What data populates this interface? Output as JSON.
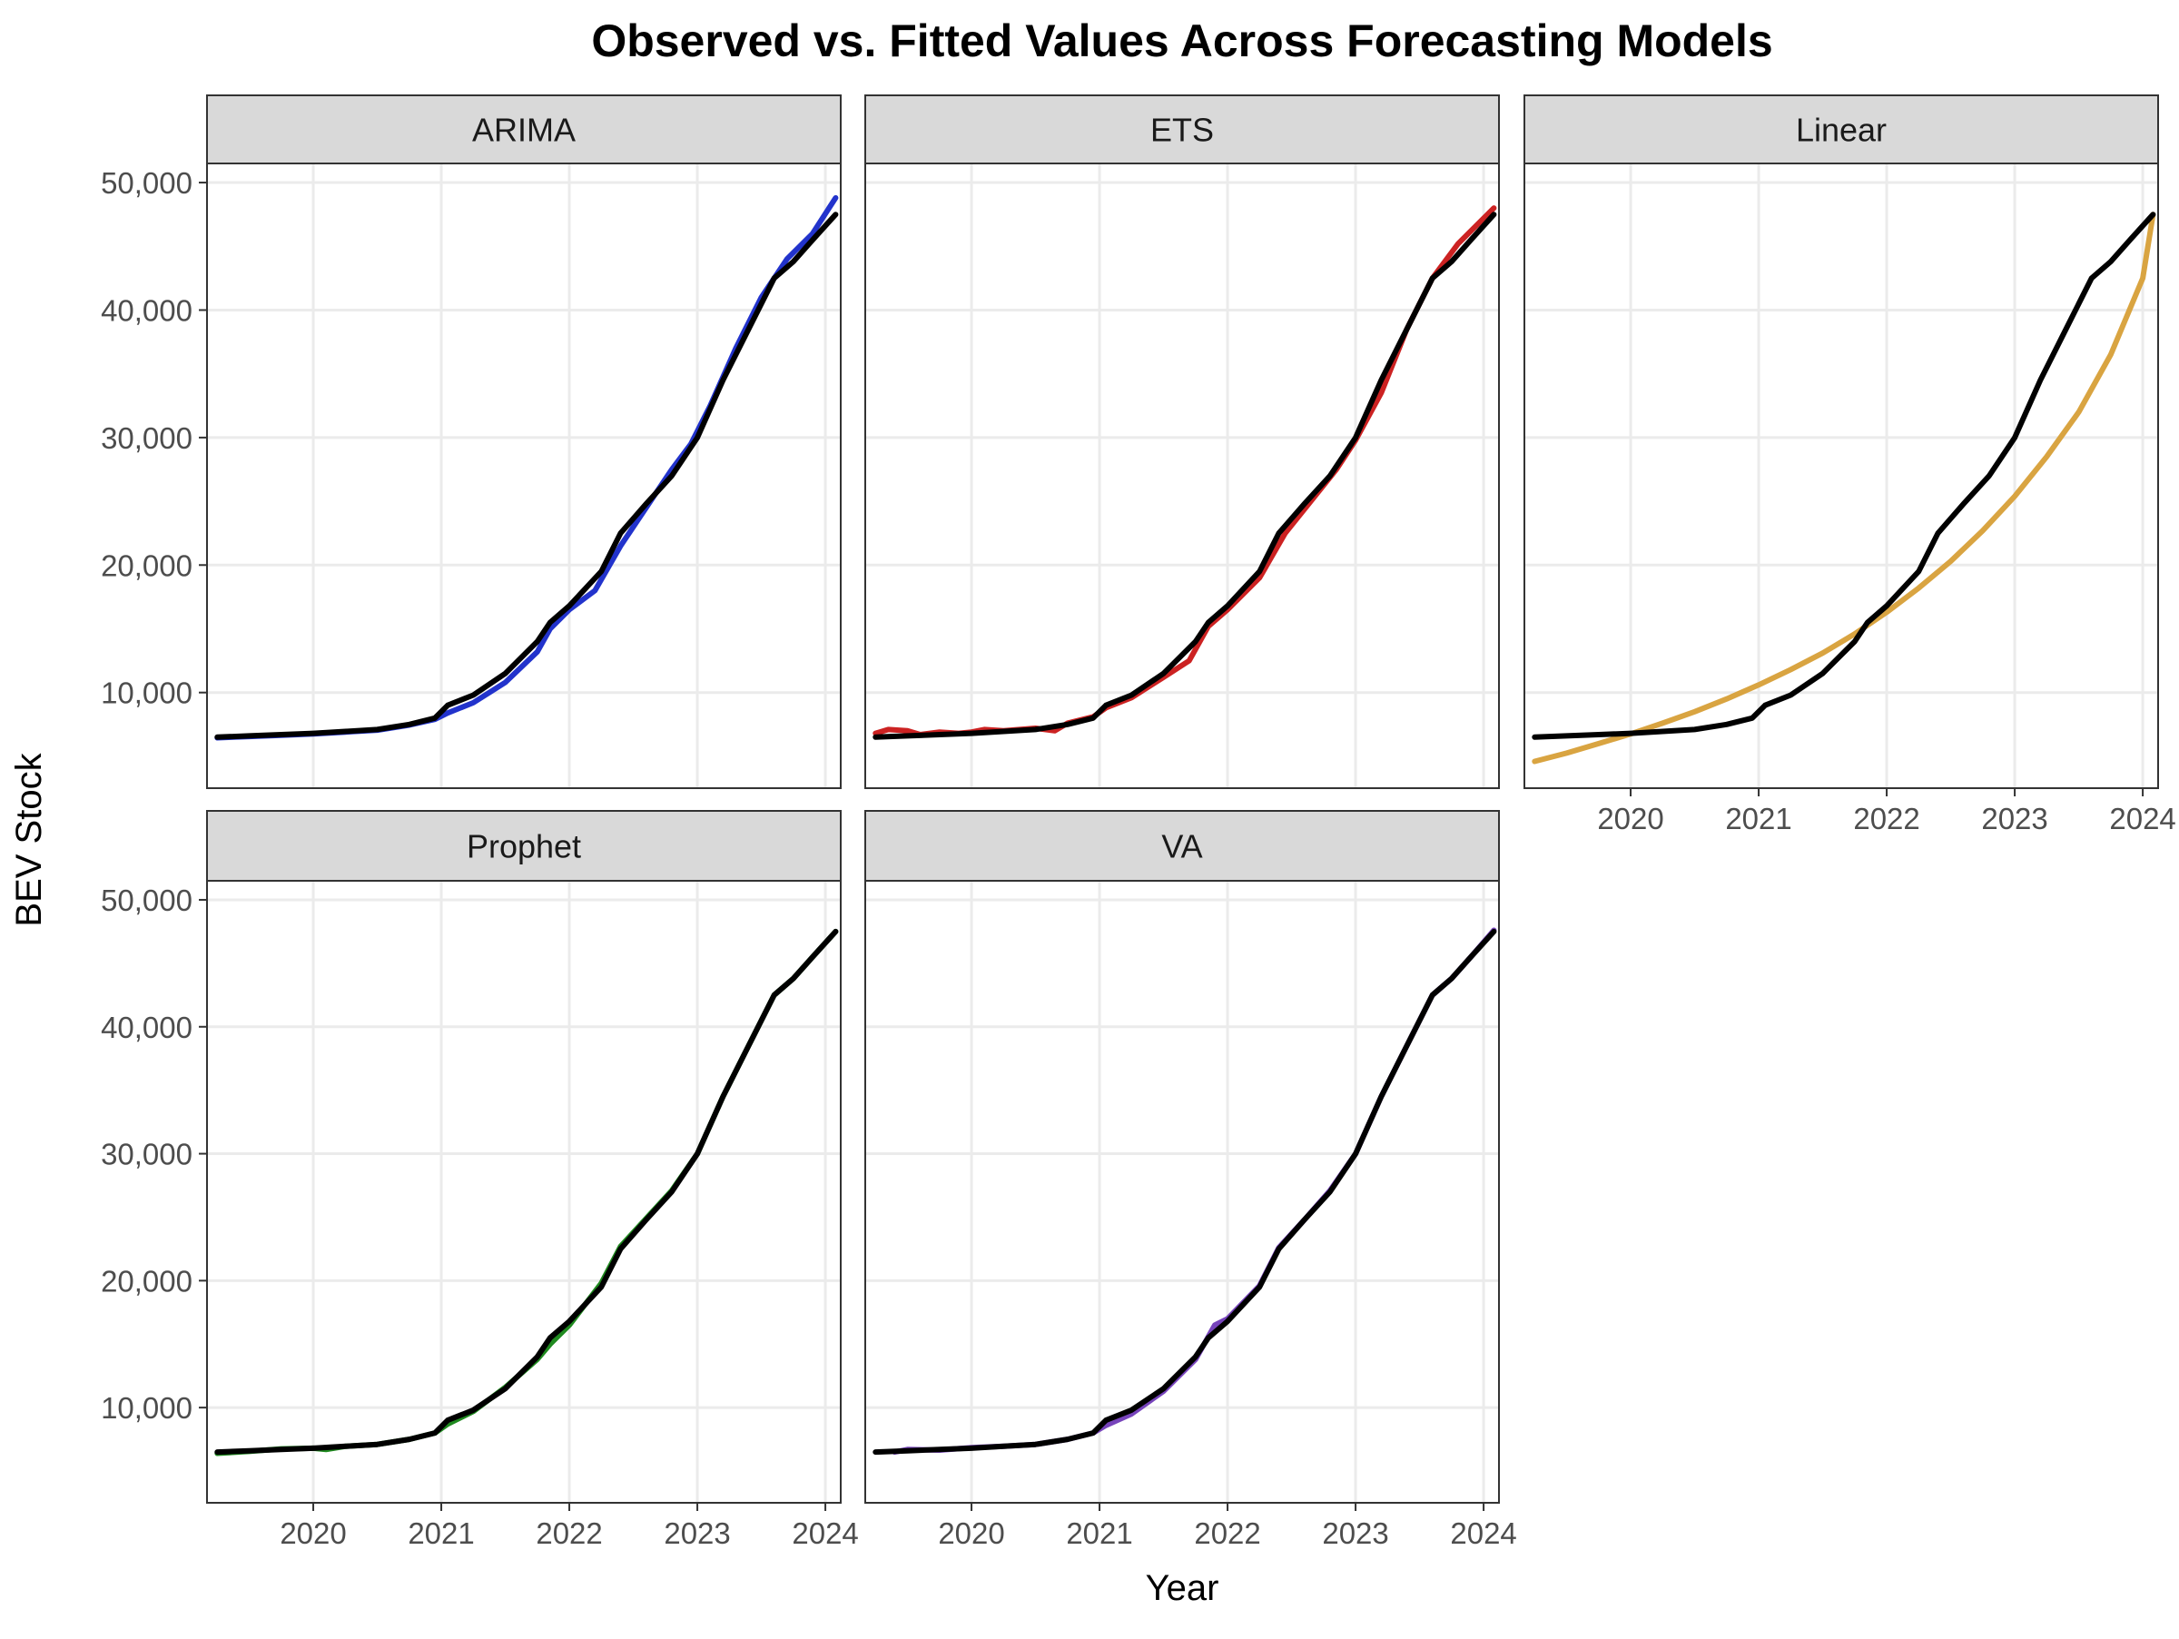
{
  "chart_data": {
    "type": "line",
    "title": "Observed vs. Fitted Values Across Forecasting Models",
    "xlabel": "Year",
    "ylabel": "BEV Stock",
    "x_ticks": [
      2020,
      2021,
      2022,
      2023,
      2024
    ],
    "x_range": [
      2019.17,
      2024.12
    ],
    "y_ticks": [
      10000,
      20000,
      30000,
      40000,
      50000
    ],
    "y_tick_labels": [
      "10,000",
      "20,000",
      "30,000",
      "40,000",
      "50,000"
    ],
    "y_range": [
      2500,
      51500
    ],
    "grid": true,
    "legend": "none",
    "observed_color": "#000000",
    "observed": {
      "x": [
        2019.25,
        2019.5,
        2019.75,
        2020.0,
        2020.25,
        2020.5,
        2020.75,
        2020.95,
        2021.05,
        2021.25,
        2021.5,
        2021.75,
        2021.85,
        2022.0,
        2022.25,
        2022.4,
        2022.6,
        2022.8,
        2023.0,
        2023.2,
        2023.4,
        2023.6,
        2023.75,
        2023.9,
        2024.08
      ],
      "y": [
        6500,
        6600,
        6700,
        6800,
        6950,
        7100,
        7500,
        8000,
        9000,
        9800,
        11500,
        14000,
        15500,
        16800,
        19500,
        22500,
        24800,
        27000,
        30000,
        34500,
        38500,
        42500,
        43800,
        45500,
        47500
      ]
    },
    "panels": [
      {
        "name": "ARIMA",
        "color": "#2233cc",
        "x": [
          2019.25,
          2019.5,
          2019.75,
          2020.0,
          2020.25,
          2020.5,
          2020.75,
          2020.95,
          2021.05,
          2021.25,
          2021.5,
          2021.75,
          2021.85,
          2022.0,
          2022.2,
          2022.4,
          2022.6,
          2022.8,
          2022.95,
          2023.1,
          2023.3,
          2023.5,
          2023.7,
          2023.9,
          2024.08
        ],
        "y": [
          6450,
          6550,
          6650,
          6750,
          6900,
          7050,
          7450,
          7900,
          8400,
          9200,
          10800,
          13200,
          15000,
          16500,
          18000,
          21500,
          24500,
          27500,
          29500,
          32500,
          37000,
          41000,
          44000,
          46000,
          48800
        ]
      },
      {
        "name": "ETS",
        "color": "#cc2222",
        "x": [
          2019.25,
          2019.35,
          2019.5,
          2019.6,
          2019.75,
          2019.9,
          2020.0,
          2020.1,
          2020.25,
          2020.5,
          2020.65,
          2020.75,
          2020.95,
          2021.05,
          2021.25,
          2021.5,
          2021.7,
          2021.85,
          2022.0,
          2022.25,
          2022.45,
          2022.65,
          2022.85,
          2023.0,
          2023.2,
          2023.4,
          2023.6,
          2023.8,
          2024.08
        ],
        "y": [
          6800,
          7100,
          7000,
          6700,
          6900,
          6800,
          6900,
          7100,
          7000,
          7200,
          7000,
          7600,
          8100,
          8800,
          9600,
          11200,
          12500,
          15200,
          16500,
          19000,
          22500,
          25000,
          27500,
          29800,
          33500,
          38500,
          42500,
          45200,
          48000
        ]
      },
      {
        "name": "Linear",
        "color": "#d9a441",
        "x": [
          2019.25,
          2019.5,
          2019.75,
          2020.0,
          2020.25,
          2020.5,
          2020.75,
          2021.0,
          2021.25,
          2021.5,
          2021.75,
          2022.0,
          2022.25,
          2022.5,
          2022.75,
          2023.0,
          2023.25,
          2023.5,
          2023.75,
          2024.0,
          2024.08
        ],
        "y": [
          4600,
          5250,
          6000,
          6750,
          7600,
          8500,
          9500,
          10600,
          11800,
          13100,
          14600,
          16300,
          18200,
          20300,
          22700,
          25400,
          28500,
          32000,
          36500,
          42500,
          47500
        ]
      },
      {
        "name": "Prophet",
        "color": "#1f8a1f",
        "x": [
          2019.25,
          2019.5,
          2019.75,
          2020.0,
          2020.1,
          2020.25,
          2020.5,
          2020.75,
          2020.95,
          2021.05,
          2021.25,
          2021.5,
          2021.75,
          2021.85,
          2022.0,
          2022.25,
          2022.4,
          2022.6,
          2022.8,
          2023.0,
          2023.2,
          2023.4,
          2023.6,
          2023.75,
          2023.9,
          2024.08
        ],
        "y": [
          6400,
          6550,
          6750,
          6800,
          6700,
          6950,
          7100,
          7500,
          8000,
          8700,
          9700,
          11600,
          13800,
          15000,
          16500,
          19800,
          22700,
          24900,
          27100,
          30000,
          34500,
          38500,
          42500,
          43800,
          45500,
          47500
        ]
      },
      {
        "name": "VA",
        "color": "#7744bb",
        "x": [
          2019.4,
          2019.5,
          2019.75,
          2020.0,
          2020.25,
          2020.5,
          2020.75,
          2020.95,
          2021.05,
          2021.25,
          2021.5,
          2021.75,
          2021.9,
          2022.0,
          2022.25,
          2022.4,
          2022.6,
          2022.8,
          2023.0,
          2023.2,
          2023.4,
          2023.6,
          2023.75,
          2023.9,
          2024.08
        ],
        "y": [
          6500,
          6700,
          6650,
          6850,
          6950,
          7100,
          7500,
          8000,
          8600,
          9500,
          11300,
          13800,
          16500,
          17000,
          19600,
          22600,
          24800,
          27100,
          30000,
          34500,
          38500,
          42500,
          43800,
          45500,
          47600
        ]
      }
    ]
  }
}
